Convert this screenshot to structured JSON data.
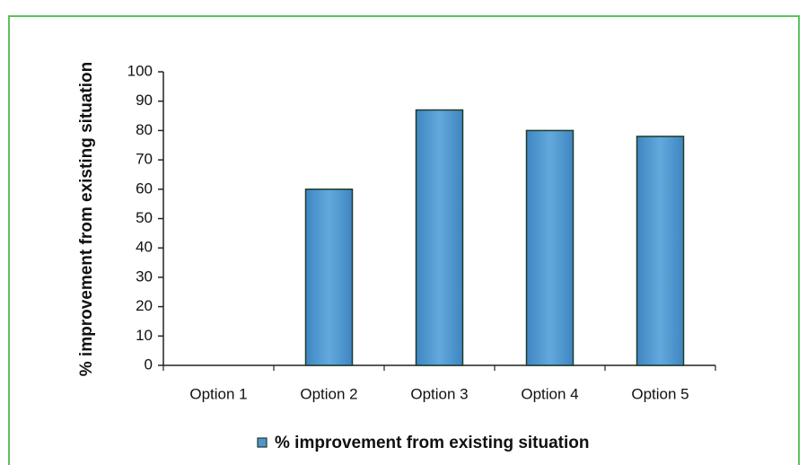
{
  "chart_data": {
    "type": "bar",
    "y_label": "% improvement from existing situation",
    "categories": [
      "Option 1",
      "Option 2",
      "Option 3",
      "Option 4",
      "Option 5"
    ],
    "series": [
      {
        "name": "% improvement from existing situation",
        "color": "#4f96cf",
        "values": [
          0,
          60,
          87,
          80,
          78
        ]
      }
    ],
    "ylim": [
      0,
      100
    ],
    "yticks": [
      0,
      10,
      20,
      30,
      40,
      50,
      60,
      70,
      80,
      90,
      100
    ],
    "legend": "bottom"
  }
}
